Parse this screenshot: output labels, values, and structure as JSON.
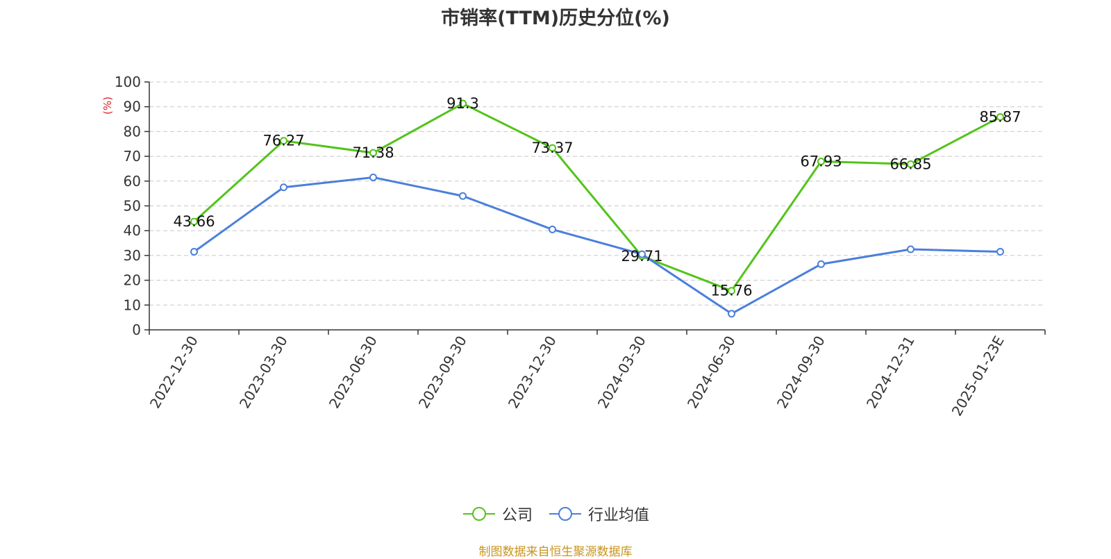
{
  "chart_data": {
    "type": "line",
    "title": "市销率(TTM)历史分位(%)",
    "ylabel": "(%)",
    "xlabel": "",
    "ylim": [
      0,
      100
    ],
    "yticks": [
      0,
      10,
      20,
      30,
      40,
      50,
      60,
      70,
      80,
      90,
      100
    ],
    "grid": true,
    "legend_position": "bottom-center",
    "categories": [
      "2022-12-30",
      "2023-03-30",
      "2023-06-30",
      "2023-09-30",
      "2023-12-30",
      "2024-03-30",
      "2024-06-30",
      "2024-09-30",
      "2024-12-31",
      "2025-01-23E"
    ],
    "series": [
      {
        "name": "公司",
        "color": "#52c41a",
        "values": [
          43.66,
          76.27,
          71.38,
          91.3,
          73.37,
          29.71,
          15.76,
          67.93,
          66.85,
          85.87
        ],
        "labels": [
          "43.66",
          "76.27",
          "71.38",
          "91.3",
          "73.37",
          "29.71",
          "15.76",
          "67.93",
          "66.85",
          "85.87"
        ]
      },
      {
        "name": "行业均值",
        "color": "#4a7fdc",
        "values": [
          31.5,
          57.5,
          61.5,
          54,
          40.5,
          30.5,
          6.5,
          26.5,
          32.5,
          31.5
        ]
      }
    ]
  },
  "footer": "制图数据来自恒生聚源数据库"
}
